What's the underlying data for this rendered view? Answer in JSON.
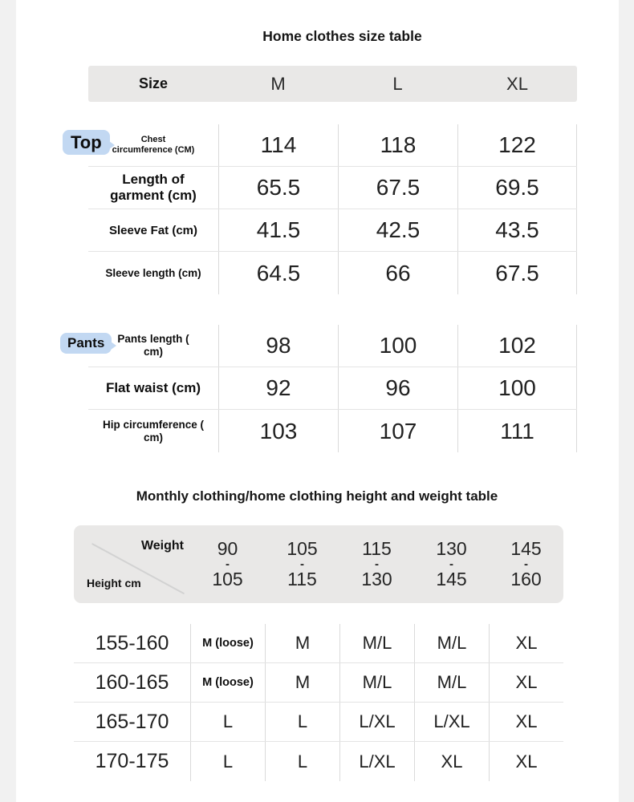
{
  "titles": {
    "size_table": "Home clothes size table",
    "height_weight_table": "Monthly clothing/home clothing height and weight table"
  },
  "size_table": {
    "header": {
      "size_label": "Size",
      "columns": [
        "M",
        "L",
        "XL"
      ]
    },
    "top_tag": "Top",
    "pants_tag": "Pants",
    "top_rows": [
      {
        "label_lines": [
          "Chest",
          "circumference (CM)"
        ],
        "values": [
          "114",
          "118",
          "122"
        ]
      },
      {
        "label_lines": [
          "Length of",
          "garment (cm)"
        ],
        "values": [
          "65.5",
          "67.5",
          "69.5"
        ]
      },
      {
        "label_lines": [
          "Sleeve Fat (cm)"
        ],
        "values": [
          "41.5",
          "42.5",
          "43.5"
        ]
      },
      {
        "label_lines": [
          "Sleeve length (cm)"
        ],
        "values": [
          "64.5",
          "66",
          "67.5"
        ]
      }
    ],
    "pants_rows": [
      {
        "label_lines": [
          "Pants length (",
          "cm)"
        ],
        "values": [
          "98",
          "100",
          "102"
        ]
      },
      {
        "label_lines": [
          "Flat waist (cm)"
        ],
        "values": [
          "92",
          "96",
          "100"
        ]
      },
      {
        "label_lines": [
          "Hip circumference (",
          "cm)"
        ],
        "values": [
          "103",
          "107",
          "111"
        ]
      }
    ]
  },
  "height_weight_table": {
    "corner": {
      "weight_label": "Weight",
      "height_label": "Height cm"
    },
    "weight_columns": [
      [
        "90",
        "-",
        "105"
      ],
      [
        "105",
        "-",
        "115"
      ],
      [
        "115",
        "-",
        "130"
      ],
      [
        "130",
        "-",
        "145"
      ],
      [
        "145",
        "-",
        "160"
      ]
    ],
    "rows": [
      {
        "height_range": "155-160",
        "values": [
          "M (loose)",
          "M",
          "M/L",
          "M/L",
          "XL"
        ]
      },
      {
        "height_range": "160-165",
        "values": [
          "M (loose)",
          "M",
          "M/L",
          "M/L",
          "XL"
        ]
      },
      {
        "height_range": "165-170",
        "values": [
          "L",
          "L",
          "L/XL",
          "L/XL",
          "XL"
        ]
      },
      {
        "height_range": "170-175",
        "values": [
          "L",
          "L",
          "L/XL",
          "XL",
          "XL"
        ]
      }
    ]
  },
  "colors": {
    "tag_bg": "#c2d8f2",
    "header_bg": "#e9e8e7",
    "side_strip": "#f1f1f1",
    "row_divider": "#e4e4e4",
    "column_divider": "#dadada"
  }
}
